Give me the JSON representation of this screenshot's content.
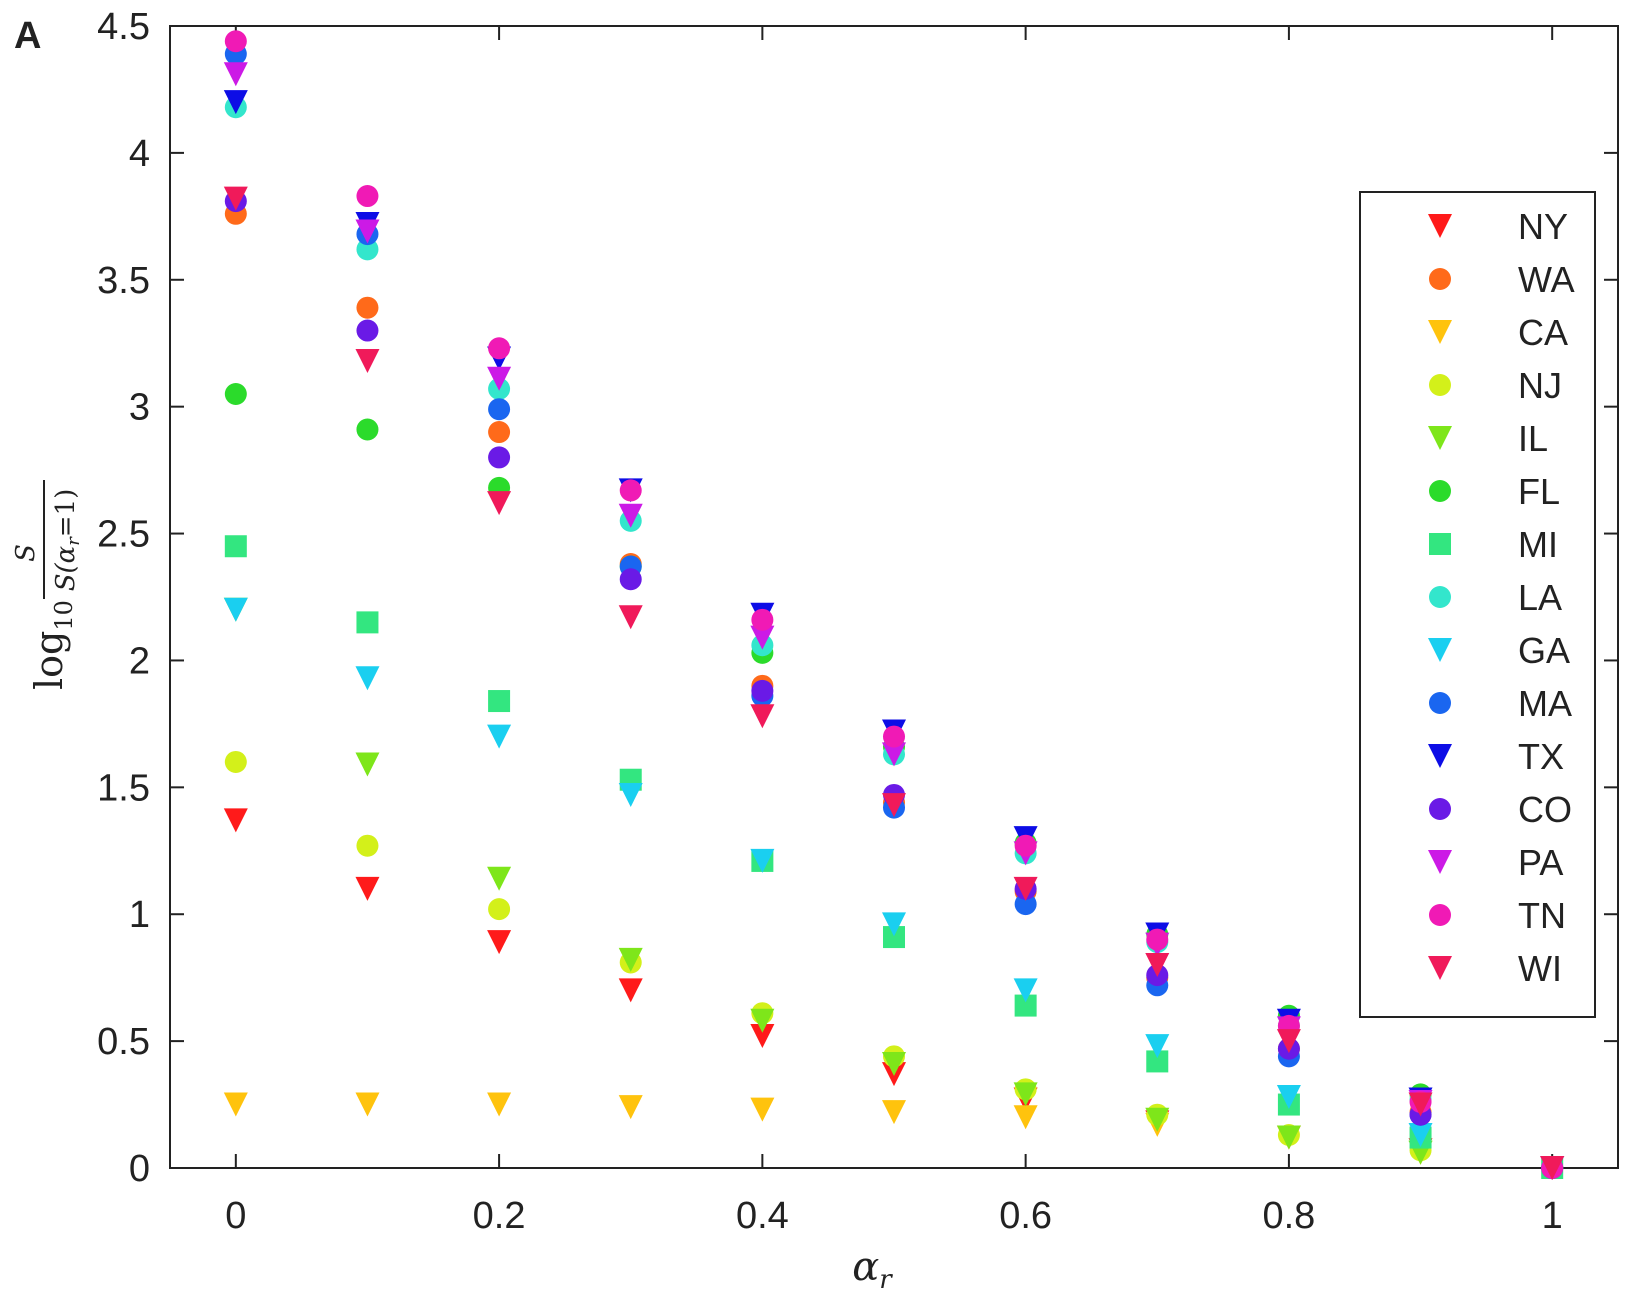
{
  "panel_label": "A",
  "chart_data": {
    "type": "scatter",
    "title": "",
    "xlabel": "α_r",
    "ylabel": "log10 S / S(α_r=1)",
    "xlim": [
      -0.05,
      1.05
    ],
    "ylim": [
      0,
      4.5
    ],
    "x_ticks": [
      0,
      0.2,
      0.4,
      0.6,
      0.8,
      1
    ],
    "x_tick_labels": [
      "0",
      "0.2",
      "0.4",
      "0.6",
      "0.8",
      "1"
    ],
    "y_ticks": [
      0,
      0.5,
      1,
      1.5,
      2,
      2.5,
      3,
      3.5,
      4,
      4.5
    ],
    "y_tick_labels": [
      "0",
      "0.5",
      "1",
      "1.5",
      "2",
      "2.5",
      "3",
      "3.5",
      "4",
      "4.5"
    ],
    "grid": false,
    "legend_position": "right",
    "x": [
      0,
      0.1,
      0.2,
      0.3,
      0.4,
      0.5,
      0.6,
      0.7,
      0.8,
      0.9,
      1
    ],
    "series": [
      {
        "name": "NY",
        "marker": "triangle-down",
        "color": "#ff1a1a",
        "values": [
          1.37,
          1.1,
          0.89,
          0.7,
          0.52,
          0.37,
          0.27,
          0.18,
          0.12,
          0.07,
          0
        ]
      },
      {
        "name": "WA",
        "marker": "circle",
        "color": "#ff6a1a",
        "values": [
          3.76,
          3.39,
          2.9,
          2.38,
          1.9,
          1.44,
          1.09,
          0.75,
          0.47,
          0.22,
          0
        ]
      },
      {
        "name": "CA",
        "marker": "triangle-down",
        "color": "#ffc30d",
        "values": [
          0.25,
          0.25,
          0.25,
          0.24,
          0.23,
          0.22,
          0.2,
          0.17,
          0.12,
          0.06,
          0
        ]
      },
      {
        "name": "NJ",
        "marker": "circle",
        "color": "#d3f01a",
        "values": [
          1.6,
          1.27,
          1.02,
          0.81,
          0.61,
          0.44,
          0.31,
          0.21,
          0.13,
          0.07,
          0
        ]
      },
      {
        "name": "IL",
        "marker": "triangle-down",
        "color": "#7ee61a",
        "values": [
          2.2,
          1.59,
          1.14,
          0.82,
          0.58,
          0.41,
          0.29,
          0.19,
          0.12,
          0.06,
          0
        ]
      },
      {
        "name": "FL",
        "marker": "circle",
        "color": "#2bdb2b",
        "values": [
          3.05,
          2.91,
          2.68,
          2.37,
          2.03,
          1.66,
          1.28,
          0.92,
          0.6,
          0.29,
          0
        ]
      },
      {
        "name": "MI",
        "marker": "square",
        "color": "#33e680",
        "values": [
          2.45,
          2.15,
          1.84,
          1.53,
          1.21,
          0.91,
          0.64,
          0.42,
          0.25,
          0.12,
          0
        ]
      },
      {
        "name": "LA",
        "marker": "circle",
        "color": "#33e6cc",
        "values": [
          4.18,
          3.62,
          3.07,
          2.55,
          2.06,
          1.63,
          1.24,
          0.89,
          0.56,
          0.27,
          0
        ]
      },
      {
        "name": "GA",
        "marker": "triangle-down",
        "color": "#1acff0",
        "values": [
          2.2,
          1.93,
          1.7,
          1.47,
          1.21,
          0.96,
          0.7,
          0.48,
          0.28,
          0.13,
          0
        ]
      },
      {
        "name": "MA",
        "marker": "circle",
        "color": "#1a66f0",
        "values": [
          4.39,
          3.68,
          2.99,
          2.37,
          1.86,
          1.42,
          1.04,
          0.72,
          0.44,
          0.21,
          0
        ]
      },
      {
        "name": "TX",
        "marker": "triangle-down",
        "color": "#0d0de6",
        "values": [
          4.2,
          3.72,
          3.19,
          2.67,
          2.18,
          1.72,
          1.3,
          0.92,
          0.58,
          0.27,
          0
        ]
      },
      {
        "name": "CO",
        "marker": "circle",
        "color": "#6a1ae6",
        "values": [
          3.81,
          3.3,
          2.8,
          2.32,
          1.88,
          1.47,
          1.1,
          0.76,
          0.47,
          0.21,
          0
        ]
      },
      {
        "name": "PA",
        "marker": "triangle-down",
        "color": "#cc1ae6",
        "values": [
          4.31,
          3.69,
          3.11,
          2.57,
          2.09,
          1.63,
          1.24,
          0.88,
          0.55,
          0.26,
          0
        ]
      },
      {
        "name": "TN",
        "marker": "circle",
        "color": "#f01ab5",
        "values": [
          4.44,
          3.83,
          3.23,
          2.67,
          2.16,
          1.7,
          1.27,
          0.9,
          0.56,
          0.26,
          0
        ]
      },
      {
        "name": "WI",
        "marker": "triangle-down",
        "color": "#f01a5a",
        "values": [
          3.82,
          3.18,
          2.62,
          2.17,
          1.78,
          1.43,
          1.1,
          0.8,
          0.5,
          0.25,
          0
        ]
      }
    ]
  }
}
